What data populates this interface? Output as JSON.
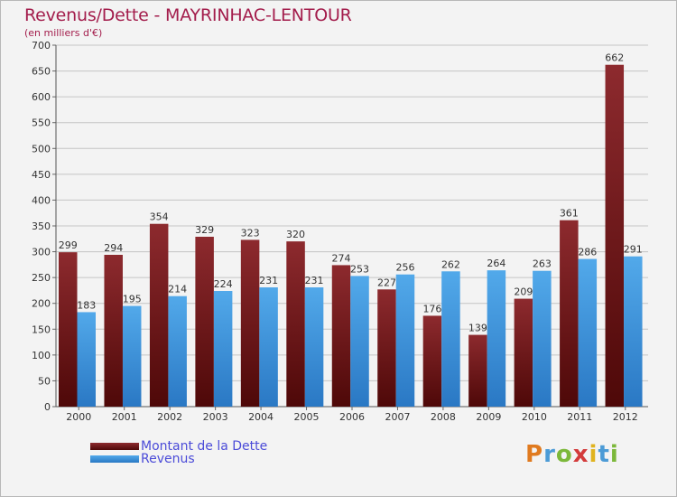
{
  "chart_data": {
    "type": "bar",
    "title": "Revenus/Dette - MAYRINHAC-LENTOUR",
    "subtitle": "(en milliers d'€)",
    "xlabel": "",
    "ylabel": "(en milliers d'€)",
    "ylim": [
      0,
      700
    ],
    "yticks": [
      0,
      50,
      100,
      150,
      200,
      250,
      300,
      350,
      400,
      450,
      500,
      550,
      600,
      650,
      700
    ],
    "grid": true,
    "legend_position": "bottom-left",
    "categories": [
      "2000",
      "2001",
      "2002",
      "2003",
      "2004",
      "2005",
      "2006",
      "2007",
      "2008",
      "2009",
      "2010",
      "2011",
      "2012"
    ],
    "series": [
      {
        "name": "Montant de la Dette",
        "color": "#6b1518",
        "values": [
          299,
          294,
          354,
          329,
          323,
          320,
          274,
          227,
          176,
          139,
          209,
          361,
          662
        ]
      },
      {
        "name": "Revenus",
        "color": "#3a8fd8",
        "values": [
          183,
          195,
          214,
          224,
          231,
          231,
          253,
          256,
          262,
          264,
          263,
          286,
          291
        ]
      }
    ]
  },
  "logo": {
    "letters": [
      "P",
      "r",
      "o",
      "x",
      "i",
      "t",
      "i"
    ]
  }
}
